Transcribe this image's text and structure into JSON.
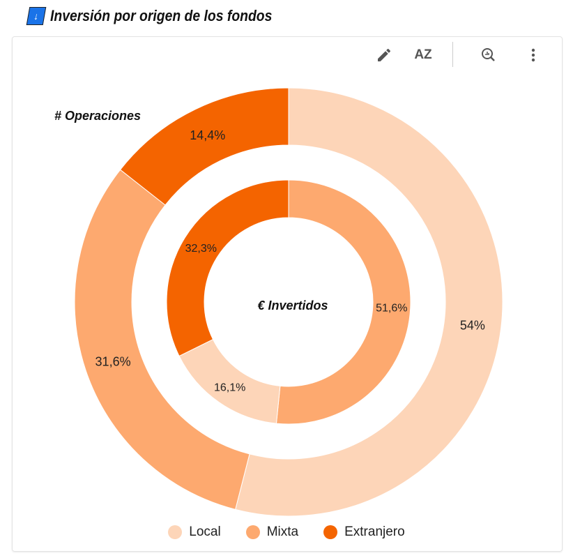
{
  "title": "Inversión por origen de los fondos",
  "toolbar": {
    "edit": "edit-icon",
    "sort": "sort-az-icon",
    "explore": "explore-icon",
    "more": "more-vert-icon",
    "sort_label": "AZ"
  },
  "chart_data": {
    "type": "pie",
    "rings": [
      {
        "name": "# Operaciones",
        "ring": "outer",
        "categories": [
          "Local",
          "Mixta",
          "Extranjero"
        ],
        "values": [
          54,
          31.6,
          14.4
        ],
        "labels": [
          "54%",
          "31,6%",
          "14,4%"
        ]
      },
      {
        "name": "€ Invertidos",
        "ring": "inner",
        "categories": [
          "Mixta",
          "Local",
          "Extranjero"
        ],
        "values": [
          51.6,
          16.1,
          32.3
        ],
        "labels": [
          "51,6%",
          "16,1%",
          "32,3%"
        ]
      }
    ],
    "legend": [
      {
        "label": "Local",
        "color": "#FDD5B8"
      },
      {
        "label": "Mixta",
        "color": "#FDA96F"
      },
      {
        "label": "Extranjero",
        "color": "#F46400"
      }
    ],
    "legend_position": "bottom"
  }
}
